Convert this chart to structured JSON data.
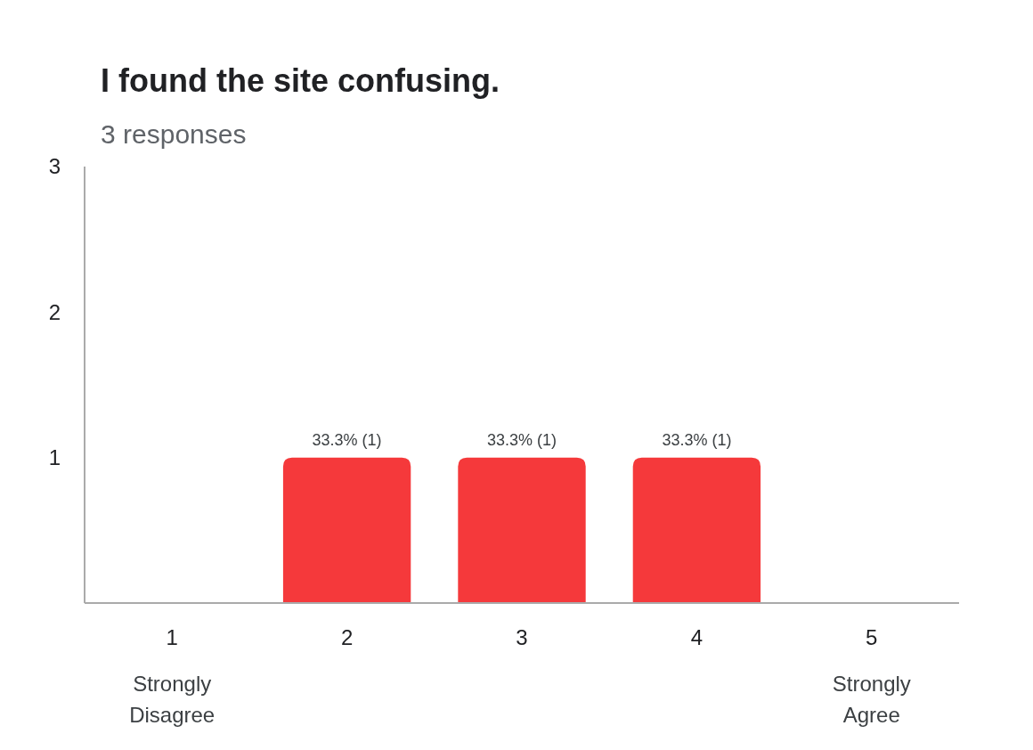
{
  "chart_data": {
    "type": "bar",
    "title": "I found the site confusing.",
    "subtitle": "3 responses",
    "categories": [
      "1",
      "2",
      "3",
      "4",
      "5"
    ],
    "values": [
      0,
      1,
      1,
      1,
      0
    ],
    "color": "#f5393b",
    "value_labels": [
      null,
      "33.3% (1)",
      "33.3% (1)",
      "33.3% (1)",
      null
    ],
    "ylim": [
      0,
      3
    ],
    "yticks": [
      1,
      2,
      3
    ],
    "grid": false,
    "annotations": [
      "Strongly Disagree",
      "Strongly Agree"
    ]
  }
}
